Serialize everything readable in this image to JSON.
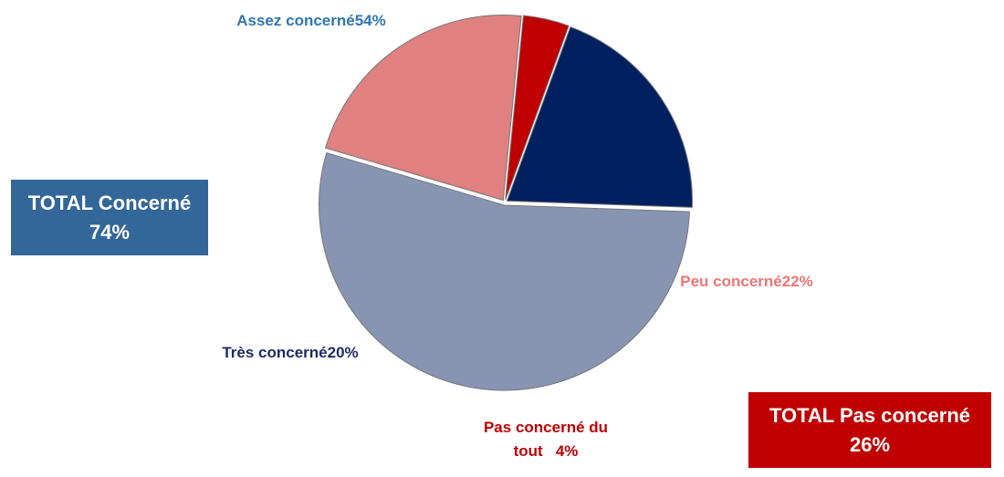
{
  "chart_data": {
    "type": "pie",
    "categories": [
      "Assez concerné",
      "Peu concerné",
      "Pas concerné du tout",
      "Très concerné"
    ],
    "values": [
      54,
      22,
      4,
      20
    ],
    "value_labels": [
      "54%",
      "22%",
      "4%",
      "20%"
    ],
    "colors": [
      "#8795b3",
      "#e08080",
      "#c00000",
      "#002060"
    ],
    "label_colors": [
      "#2e75b6",
      "#f07575",
      "#c00000",
      "#1f2a66"
    ],
    "totals": [
      {
        "label": "TOTAL Concerné",
        "value": 74,
        "value_label": "74%",
        "color": "#336699"
      },
      {
        "label": "TOTAL Pas concerné",
        "value": 26,
        "value_label": "26%",
        "color": "#c00000"
      }
    ]
  }
}
